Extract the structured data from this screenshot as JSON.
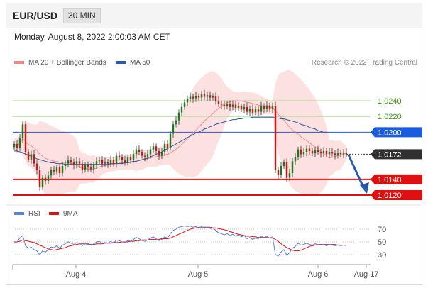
{
  "header": {
    "symbol": "EUR/USD",
    "timeframe": "30 MIN"
  },
  "datetime": "Monday, August 8, 2022 2:00:03 AM CET",
  "legend": {
    "ma20": {
      "label": "MA 20 + Bollinger Bands",
      "color": "#f08a8a"
    },
    "ma50": {
      "label": "MA 50",
      "color": "#2b5aa8"
    }
  },
  "research": "Research © 2022 Trading Central",
  "rsi_legend": {
    "rsi": {
      "label": "RSI",
      "color": "#5b7fd6"
    },
    "ma9": {
      "label": "9MA",
      "color": "#e01010"
    }
  },
  "colors": {
    "up_candle": "#1b7a1b",
    "down_candle": "#c21a1a",
    "band_fill": "#fde0e0",
    "arrow": "#2b5aa8"
  },
  "chart_data": {
    "type": "candlestick",
    "ylim": [
      1.0117,
      1.0256
    ],
    "levels": [
      {
        "value": 1.024,
        "label": "1.0240",
        "kind": "target",
        "color": "#a8d890",
        "text_color": "#3f9a14"
      },
      {
        "value": 1.022,
        "label": "1.0220",
        "kind": "target",
        "color": "#a8d890",
        "text_color": "#3f9a14"
      },
      {
        "value": 1.02,
        "label": "1.0200",
        "kind": "pivot",
        "color": "#1a5ce0"
      },
      {
        "value": 1.0172,
        "label": "1.0172",
        "kind": "last",
        "color": "#303030"
      },
      {
        "value": 1.014,
        "label": "1.0140",
        "kind": "support",
        "color": "#e01010"
      },
      {
        "value": 1.012,
        "label": "1.0120",
        "kind": "support",
        "color": "#e01010"
      }
    ],
    "x_labels": [
      "Aug 4",
      "Aug 5",
      "Aug 6",
      "Aug 17"
    ],
    "close": [
      1.0185,
      1.018,
      1.0192,
      1.021,
      1.0175,
      1.0165,
      1.0172,
      1.016,
      1.0152,
      1.013,
      1.0142,
      1.0138,
      1.0145,
      1.0152,
      1.015,
      1.0155,
      1.0148,
      1.0157,
      1.016,
      1.0165,
      1.0162,
      1.0158,
      1.0163,
      1.016,
      1.0152,
      1.0158,
      1.0155,
      1.0153,
      1.0158,
      1.0163,
      1.0165,
      1.016,
      1.0162,
      1.016,
      1.0165,
      1.016,
      1.017,
      1.0168,
      1.0165,
      1.0162,
      1.0168,
      1.0165,
      1.0172,
      1.0178,
      1.0175,
      1.017,
      1.0168,
      1.0172,
      1.0178,
      1.0182,
      1.0176,
      1.017,
      1.0175,
      1.0185,
      1.018,
      1.0198,
      1.021,
      1.0215,
      1.0225,
      1.0232,
      1.0238,
      1.0242,
      1.0245,
      1.0243,
      1.0246,
      1.0244,
      1.0248,
      1.0245,
      1.0247,
      1.0244,
      1.0246,
      1.024,
      1.0236,
      1.0235,
      1.0233,
      1.0236,
      1.0232,
      1.0235,
      1.0231,
      1.0233,
      1.0229,
      1.0232,
      1.0226,
      1.023,
      1.0225,
      1.0229,
      1.0226,
      1.0233,
      1.023,
      1.0234,
      1.0229,
      1.0233,
      1.0152,
      1.0146,
      1.0157,
      1.0162,
      1.0142,
      1.0148,
      1.0163,
      1.0168,
      1.0178,
      1.0172,
      1.0175,
      1.0179,
      1.0176,
      1.0173,
      1.0177,
      1.0175,
      1.0173,
      1.0176,
      1.0172,
      1.0175,
      1.0173,
      1.0171,
      1.0174,
      1.0172,
      1.0174,
      1.0172
    ],
    "ma50": [
      1.0176,
      1.0176,
      1.0175,
      1.0174,
      1.0172,
      1.0171,
      1.0169,
      1.0168,
      1.0166,
      1.0165,
      1.0164,
      1.0163,
      1.0162,
      1.0161,
      1.0161,
      1.016,
      1.016,
      1.016,
      1.0159,
      1.0159,
      1.0159,
      1.0159,
      1.0159,
      1.0159,
      1.0159,
      1.0159,
      1.0159,
      1.0159,
      1.0159,
      1.0159,
      1.0159,
      1.0159,
      1.0159,
      1.0159,
      1.016,
      1.016,
      1.016,
      1.016,
      1.016,
      1.0161,
      1.0161,
      1.0162,
      1.0163,
      1.0163,
      1.0164,
      1.0165,
      1.0166,
      1.0167,
      1.0169,
      1.017,
      1.0172,
      1.0173,
      1.0175,
      1.0177,
      1.0179,
      1.0181,
      1.0183,
      1.0185,
      1.0187,
      1.0189,
      1.0191,
      1.0193,
      1.0195,
      1.0197,
      1.0199,
      1.02,
      1.0202,
      1.0204,
      1.0205,
      1.0207,
      1.0208,
      1.021,
      1.0211,
      1.0212,
      1.0213,
      1.0214,
      1.0215,
      1.0216,
      1.0216,
      1.0217,
      1.0217,
      1.0218,
      1.0218,
      1.0218,
      1.0219,
      1.0219,
      1.0219,
      1.0219,
      1.0219,
      1.0219,
      1.0219,
      1.0219,
      1.0218,
      1.0218,
      1.0217,
      1.0217,
      1.0216,
      1.0215,
      1.0214,
      1.0213,
      1.0212,
      1.021,
      1.0209,
      1.0208,
      1.0206,
      1.0205,
      1.0204,
      1.0202,
      1.0201,
      1.02,
      1.02,
      1.0199,
      1.0199,
      1.0199,
      1.0199,
      1.0199,
      1.0199,
      1.0199
    ],
    "rsi": [
      48,
      50,
      56,
      60,
      44,
      40,
      42,
      38,
      36,
      30,
      36,
      34,
      38,
      42,
      41,
      44,
      40,
      45,
      47,
      50,
      48,
      46,
      49,
      48,
      44,
      47,
      46,
      45,
      47,
      50,
      51,
      48,
      49,
      48,
      51,
      48,
      53,
      52,
      50,
      49,
      52,
      51,
      54,
      57,
      55,
      52,
      51,
      53,
      56,
      58,
      55,
      52,
      54,
      58,
      56,
      63,
      68,
      70,
      73,
      74,
      75,
      74,
      75,
      73,
      74,
      72,
      74,
      72,
      73,
      71,
      72,
      68,
      64,
      63,
      61,
      63,
      60,
      62,
      59,
      61,
      58,
      60,
      55,
      57,
      54,
      56,
      55,
      59,
      57,
      59,
      56,
      58,
      30,
      28,
      34,
      38,
      29,
      33,
      40,
      43,
      48,
      45,
      46,
      48,
      46,
      45,
      47,
      46,
      45,
      46,
      44,
      46,
      45,
      44,
      45,
      44,
      45,
      44
    ],
    "rsi_ma9": [
      50,
      50,
      51,
      53,
      52,
      51,
      50,
      49,
      47,
      45,
      43,
      41,
      39,
      38,
      37,
      38,
      39,
      40,
      41,
      43,
      44,
      45,
      46,
      47,
      47,
      47,
      47,
      46,
      46,
      47,
      47,
      47,
      48,
      48,
      48,
      49,
      49,
      49,
      50,
      50,
      50,
      51,
      51,
      52,
      52,
      53,
      53,
      53,
      54,
      54,
      54,
      54,
      55,
      55,
      55,
      56,
      58,
      60,
      62,
      64,
      66,
      68,
      70,
      71,
      72,
      73,
      73,
      73,
      73,
      73,
      72,
      72,
      71,
      70,
      69,
      68,
      66,
      65,
      63,
      62,
      61,
      60,
      59,
      59,
      58,
      58,
      57,
      57,
      57,
      57,
      56,
      56,
      54,
      51,
      47,
      44,
      41,
      39,
      37,
      36,
      36,
      37,
      39,
      41,
      43,
      44,
      45,
      46,
      46,
      46,
      46,
      46,
      46,
      46,
      45,
      45,
      45,
      45
    ],
    "rsi_levels": [
      70,
      50,
      30
    ],
    "rsi_ylim": [
      20,
      80
    ]
  }
}
